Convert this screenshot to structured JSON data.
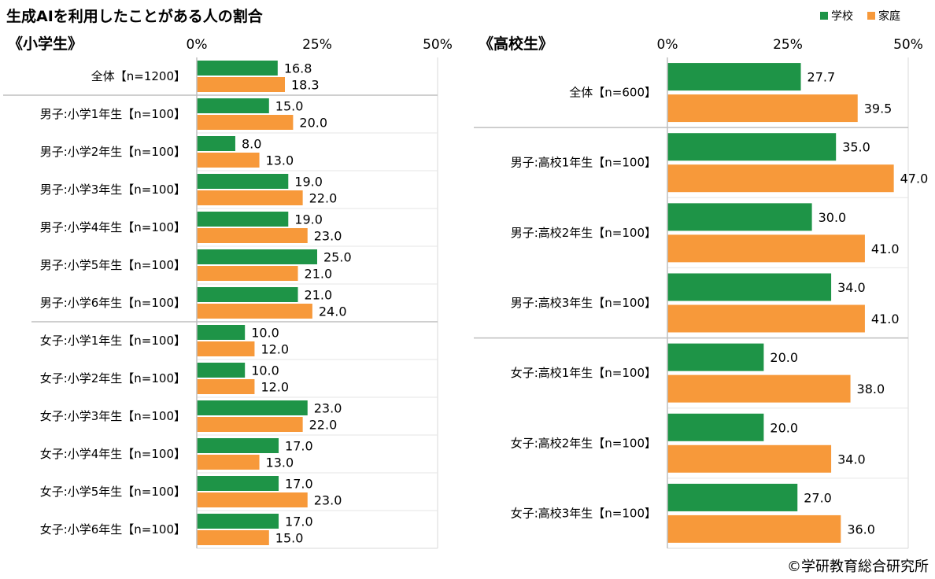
{
  "title": "生成AIを利用したことがある人の割合",
  "legend": {
    "placement": "top-right",
    "items": [
      {
        "name": "学校",
        "color": "#1e9447"
      },
      {
        "name": "家庭",
        "color": "#f7993a"
      }
    ]
  },
  "copyright": "©学研教育総合研究所",
  "chart_data": [
    {
      "type": "bar",
      "orientation": "horizontal",
      "title": "《小学生》",
      "xlim": [
        0,
        50
      ],
      "ticks": [
        "0%",
        "25%",
        "50%"
      ],
      "tick_values": [
        0,
        25,
        50
      ],
      "categories": [
        "全体【n=1200】",
        "男子:小学1年生【n=100】",
        "男子:小学2年生【n=100】",
        "男子:小学3年生【n=100】",
        "男子:小学4年生【n=100】",
        "男子:小学5年生【n=100】",
        "男子:小学6年生【n=100】",
        "女子:小学1年生【n=100】",
        "女子:小学2年生【n=100】",
        "女子:小学3年生【n=100】",
        "女子:小学4年生【n=100】",
        "女子:小学5年生【n=100】",
        "女子:小学6年生【n=100】"
      ],
      "series": [
        {
          "name": "学校",
          "values": [
            16.8,
            15.0,
            8.0,
            19.0,
            19.0,
            25.0,
            21.0,
            10.0,
            10.0,
            23.0,
            17.0,
            17.0,
            17.0
          ],
          "labels": [
            "16.8",
            "15.0",
            "8.0",
            "19.0",
            "19.0",
            "25.0",
            "21.0",
            "10.0",
            "10.0",
            "23.0",
            "17.0",
            "17.0",
            "17.0"
          ]
        },
        {
          "name": "家庭",
          "values": [
            18.3,
            20.0,
            13.0,
            22.0,
            23.0,
            21.0,
            24.0,
            12.0,
            12.0,
            22.0,
            13.0,
            23.0,
            15.0
          ],
          "labels": [
            "18.3",
            "20.0",
            "13.0",
            "22.0",
            "23.0",
            "21.0",
            "24.0",
            "12.0",
            "12.0",
            "22.0",
            "13.0",
            "23.0",
            "15.0"
          ]
        }
      ],
      "group_breaks_after": [
        0,
        6
      ]
    },
    {
      "type": "bar",
      "orientation": "horizontal",
      "title": "《高校生》",
      "xlim": [
        0,
        50
      ],
      "ticks": [
        "0%",
        "25%",
        "50%"
      ],
      "tick_values": [
        0,
        25,
        50
      ],
      "categories": [
        "全体【n=600】",
        "男子:高校1年生【n=100】",
        "男子:高校2年生【n=100】",
        "男子:高校3年生【n=100】",
        "女子:高校1年生【n=100】",
        "女子:高校2年生【n=100】",
        "女子:高校3年生【n=100】"
      ],
      "series": [
        {
          "name": "学校",
          "values": [
            27.7,
            35.0,
            30.0,
            34.0,
            20.0,
            20.0,
            27.0
          ],
          "labels": [
            "27.7",
            "35.0",
            "30.0",
            "34.0",
            "20.0",
            "20.0",
            "27.0"
          ]
        },
        {
          "name": "家庭",
          "values": [
            39.5,
            47.0,
            41.0,
            41.0,
            38.0,
            34.0,
            36.0
          ],
          "labels": [
            "39.5",
            "47.0",
            "41.0",
            "41.0",
            "38.0",
            "34.0",
            "36.0"
          ]
        }
      ],
      "group_breaks_after": [
        0,
        3
      ]
    }
  ]
}
